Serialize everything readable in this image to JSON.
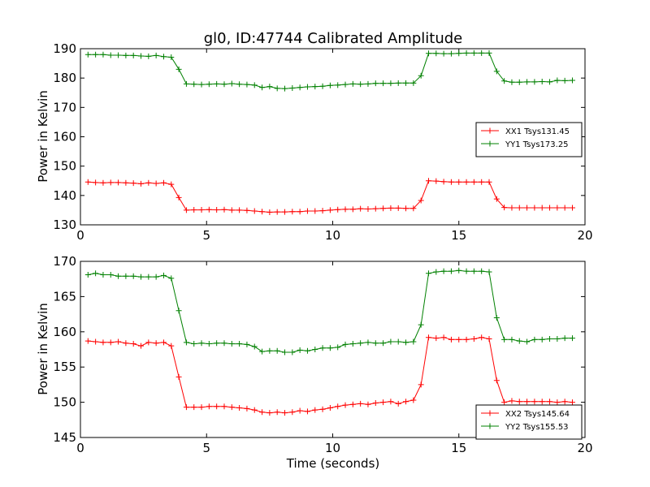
{
  "title": "gl0, ID:47744 Calibrated Amplitude",
  "chart_data": [
    {
      "type": "line",
      "ylabel": "Power in Kelvin",
      "xlabel": "",
      "xlim": [
        0,
        20
      ],
      "ylim": [
        130,
        190
      ],
      "xticks": [
        "0",
        "5",
        "10",
        "15",
        "20"
      ],
      "yticks": [
        "130",
        "140",
        "150",
        "160",
        "170",
        "180",
        "190"
      ],
      "legend_position": "right",
      "series": [
        {
          "name": "XX1 Tsys131.45",
          "color": "#ff0000",
          "x": [
            0.3,
            0.6,
            0.9,
            1.2,
            1.5,
            1.8,
            2.1,
            2.4,
            2.7,
            3.0,
            3.3,
            3.6,
            3.9,
            4.2,
            4.5,
            4.8,
            5.1,
            5.4,
            5.7,
            6.0,
            6.3,
            6.6,
            6.9,
            7.2,
            7.5,
            7.8,
            8.1,
            8.4,
            8.7,
            9.0,
            9.3,
            9.6,
            9.9,
            10.2,
            10.5,
            10.8,
            11.1,
            11.4,
            11.7,
            12.0,
            12.3,
            12.6,
            12.9,
            13.2,
            13.5,
            13.8,
            14.1,
            14.4,
            14.7,
            15.0,
            15.3,
            15.6,
            15.9,
            16.2,
            16.5,
            16.8,
            17.1,
            17.4,
            17.7,
            18.0,
            18.3,
            18.6,
            18.9,
            19.2,
            19.5
          ],
          "values": [
            144.6,
            144.4,
            144.3,
            144.4,
            144.4,
            144.3,
            144.2,
            144.0,
            144.3,
            144.1,
            144.3,
            143.8,
            139.3,
            135.0,
            135.1,
            135.1,
            135.2,
            135.1,
            135.2,
            135.0,
            135.0,
            134.9,
            134.7,
            134.5,
            134.3,
            134.4,
            134.4,
            134.5,
            134.5,
            134.7,
            134.7,
            134.8,
            135.0,
            135.2,
            135.3,
            135.3,
            135.5,
            135.4,
            135.5,
            135.6,
            135.7,
            135.7,
            135.6,
            135.6,
            138.3,
            145.0,
            144.9,
            144.7,
            144.6,
            144.6,
            144.6,
            144.6,
            144.6,
            144.6,
            138.8,
            135.9,
            135.8,
            135.8,
            135.8,
            135.8,
            135.8,
            135.8,
            135.8,
            135.8,
            135.8
          ]
        },
        {
          "name": "YY1 Tsys173.25",
          "color": "#008000",
          "x": [
            0.3,
            0.6,
            0.9,
            1.2,
            1.5,
            1.8,
            2.1,
            2.4,
            2.7,
            3.0,
            3.3,
            3.6,
            3.9,
            4.2,
            4.5,
            4.8,
            5.1,
            5.4,
            5.7,
            6.0,
            6.3,
            6.6,
            6.9,
            7.2,
            7.5,
            7.8,
            8.1,
            8.4,
            8.7,
            9.0,
            9.3,
            9.6,
            9.9,
            10.2,
            10.5,
            10.8,
            11.1,
            11.4,
            11.7,
            12.0,
            12.3,
            12.6,
            12.9,
            13.2,
            13.5,
            13.8,
            14.1,
            14.4,
            14.7,
            15.0,
            15.3,
            15.6,
            15.9,
            16.2,
            16.5,
            16.8,
            17.1,
            17.4,
            17.7,
            18.0,
            18.3,
            18.6,
            18.9,
            19.2,
            19.5
          ],
          "values": [
            188.0,
            188.0,
            188.0,
            187.8,
            187.8,
            187.7,
            187.7,
            187.5,
            187.4,
            187.7,
            187.3,
            187.1,
            183.0,
            178.0,
            177.9,
            177.8,
            177.9,
            178.0,
            177.9,
            178.1,
            177.9,
            177.8,
            177.6,
            176.8,
            177.1,
            176.5,
            176.4,
            176.6,
            176.8,
            177.0,
            177.1,
            177.2,
            177.5,
            177.6,
            177.8,
            178.0,
            177.9,
            178.0,
            178.2,
            178.2,
            178.2,
            178.3,
            178.3,
            178.3,
            180.8,
            188.4,
            188.4,
            188.3,
            188.3,
            188.4,
            188.5,
            188.5,
            188.5,
            188.5,
            182.3,
            179.0,
            178.6,
            178.6,
            178.7,
            178.7,
            178.8,
            178.7,
            179.2,
            179.1,
            179.2
          ]
        }
      ]
    },
    {
      "type": "line",
      "ylabel": "Power in Kelvin",
      "xlabel": "Time (seconds)",
      "xlim": [
        0,
        20
      ],
      "ylim": [
        145,
        170
      ],
      "xticks": [
        "0",
        "5",
        "10",
        "15",
        "20"
      ],
      "yticks": [
        "145",
        "150",
        "155",
        "160",
        "165",
        "170"
      ],
      "legend_position": "lower right",
      "series": [
        {
          "name": "XX2 Tsys145.64",
          "color": "#ff0000",
          "x": [
            0.3,
            0.6,
            0.9,
            1.2,
            1.5,
            1.8,
            2.1,
            2.4,
            2.7,
            3.0,
            3.3,
            3.6,
            3.9,
            4.2,
            4.5,
            4.8,
            5.1,
            5.4,
            5.7,
            6.0,
            6.3,
            6.6,
            6.9,
            7.2,
            7.5,
            7.8,
            8.1,
            8.4,
            8.7,
            9.0,
            9.3,
            9.6,
            9.9,
            10.2,
            10.5,
            10.8,
            11.1,
            11.4,
            11.7,
            12.0,
            12.3,
            12.6,
            12.9,
            13.2,
            13.5,
            13.8,
            14.1,
            14.4,
            14.7,
            15.0,
            15.3,
            15.6,
            15.9,
            16.2,
            16.5,
            16.8,
            17.1,
            17.4,
            17.7,
            18.0,
            18.3,
            18.6,
            18.9,
            19.2,
            19.5
          ],
          "values": [
            158.7,
            158.6,
            158.5,
            158.5,
            158.6,
            158.4,
            158.3,
            158.0,
            158.5,
            158.4,
            158.5,
            158.0,
            153.6,
            149.3,
            149.3,
            149.3,
            149.4,
            149.4,
            149.4,
            149.3,
            149.2,
            149.1,
            148.9,
            148.6,
            148.5,
            148.6,
            148.5,
            148.6,
            148.8,
            148.7,
            148.9,
            149.0,
            149.2,
            149.4,
            149.6,
            149.7,
            149.8,
            149.7,
            149.9,
            150.0,
            150.1,
            149.8,
            150.1,
            150.3,
            152.5,
            159.2,
            159.1,
            159.2,
            158.9,
            158.9,
            158.9,
            159.0,
            159.2,
            159.0,
            153.1,
            150.0,
            150.2,
            150.1,
            150.1,
            150.1,
            150.1,
            150.1,
            150.0,
            150.1,
            150.0
          ]
        },
        {
          "name": "YY2 Tsys155.53",
          "color": "#008000",
          "x": [
            0.3,
            0.6,
            0.9,
            1.2,
            1.5,
            1.8,
            2.1,
            2.4,
            2.7,
            3.0,
            3.3,
            3.6,
            3.9,
            4.2,
            4.5,
            4.8,
            5.1,
            5.4,
            5.7,
            6.0,
            6.3,
            6.6,
            6.9,
            7.2,
            7.5,
            7.8,
            8.1,
            8.4,
            8.7,
            9.0,
            9.3,
            9.6,
            9.9,
            10.2,
            10.5,
            10.8,
            11.1,
            11.4,
            11.7,
            12.0,
            12.3,
            12.6,
            12.9,
            13.2,
            13.5,
            13.8,
            14.1,
            14.4,
            14.7,
            15.0,
            15.3,
            15.6,
            15.9,
            16.2,
            16.5,
            16.8,
            17.1,
            17.4,
            17.7,
            18.0,
            18.3,
            18.6,
            18.9,
            19.2,
            19.5
          ],
          "values": [
            168.1,
            168.3,
            168.1,
            168.1,
            167.9,
            167.9,
            167.9,
            167.8,
            167.8,
            167.8,
            168.0,
            167.6,
            163.0,
            158.5,
            158.3,
            158.4,
            158.3,
            158.4,
            158.4,
            158.3,
            158.3,
            158.2,
            157.9,
            157.2,
            157.3,
            157.3,
            157.1,
            157.1,
            157.4,
            157.3,
            157.5,
            157.7,
            157.7,
            157.8,
            158.2,
            158.3,
            158.4,
            158.5,
            158.4,
            158.4,
            158.6,
            158.6,
            158.5,
            158.6,
            161.0,
            168.3,
            168.5,
            168.6,
            168.6,
            168.7,
            168.6,
            168.6,
            168.6,
            168.5,
            162.0,
            158.9,
            158.9,
            158.7,
            158.6,
            158.9,
            158.9,
            159.0,
            159.0,
            159.1,
            159.1
          ]
        }
      ]
    }
  ]
}
